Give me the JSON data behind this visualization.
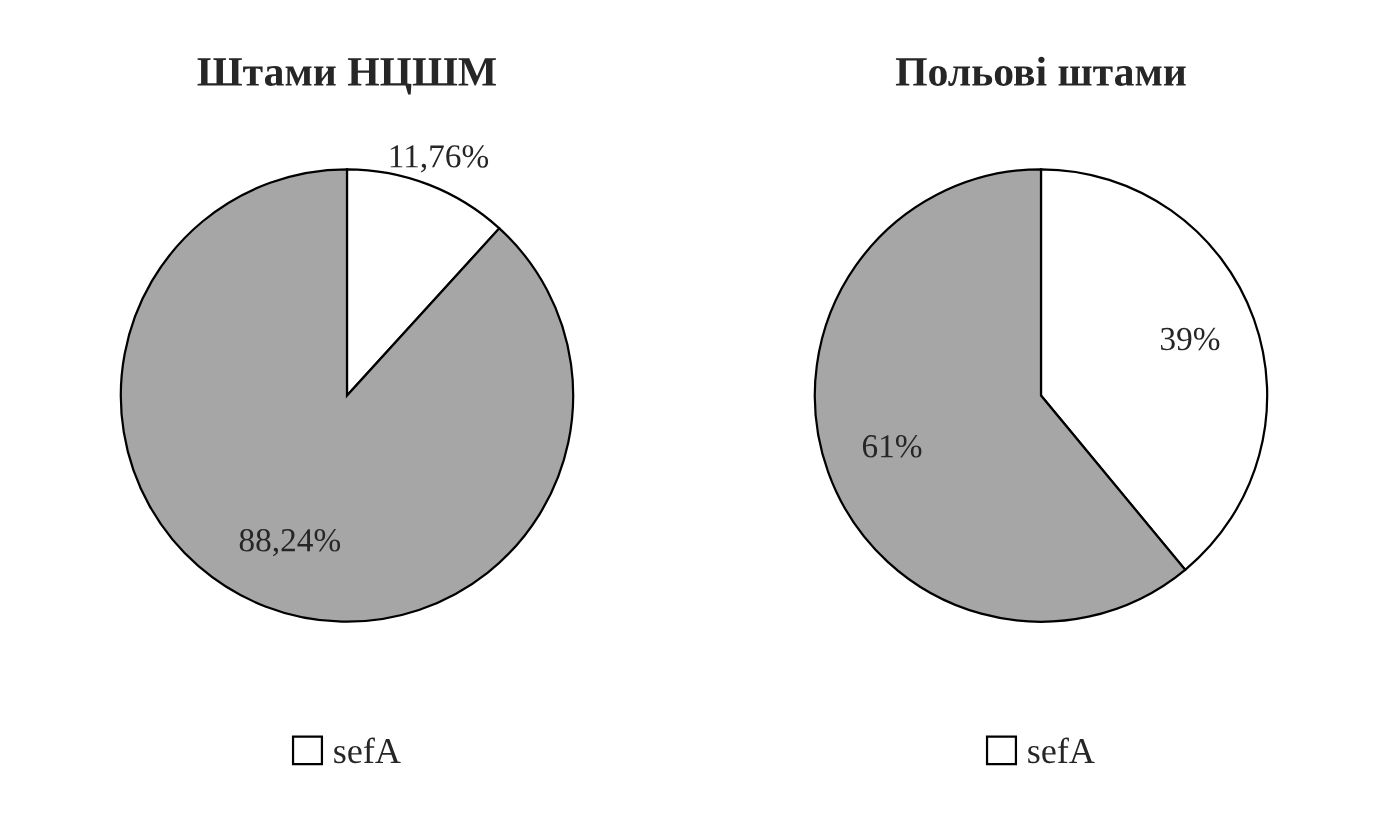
{
  "chart_data": [
    {
      "type": "pie",
      "title": "Штами НЦШМ",
      "categories": [
        "sefA",
        null
      ],
      "values": [
        11.76,
        88.24
      ],
      "colors": [
        "#ffffff",
        "#a6a6a6"
      ],
      "value_labels": [
        "11,76%",
        "88,24%"
      ],
      "legend": "bottom"
    },
    {
      "type": "pie",
      "title": "Польові штами",
      "categories": [
        "sefA",
        null
      ],
      "values": [
        39,
        61
      ],
      "colors": [
        "#ffffff",
        "#a6a6a6"
      ],
      "value_labels": [
        "39%",
        "61%"
      ],
      "legend": "bottom"
    }
  ]
}
